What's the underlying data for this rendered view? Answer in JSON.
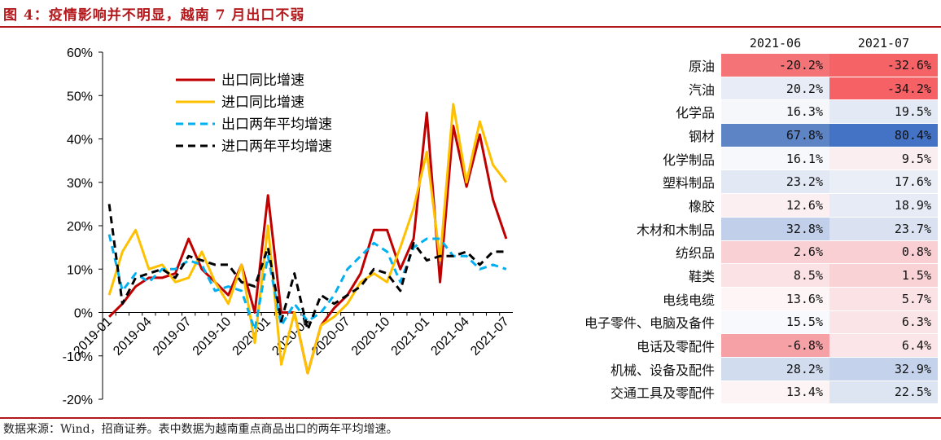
{
  "figure_title": "图 4：疫情影响并不明显，越南 7 月出口不弱",
  "source_note": "数据来源：Wind，招商证券。表中数据为越南重点商品出口的两年平均增速。",
  "colors": {
    "title_red": "#b3191c",
    "export_yoy": "#c00000",
    "import_yoy": "#ffc000",
    "export_2y": "#00b0f0",
    "import_2y": "#000000"
  },
  "chart_data": [
    {
      "type": "line",
      "ylim": [
        -0.2,
        0.6
      ],
      "yticks": [
        "60%",
        "50%",
        "40%",
        "30%",
        "20%",
        "10%",
        "0%",
        "-10%",
        "-20%"
      ],
      "x": [
        "2019-01",
        "2019-02",
        "2019-03",
        "2019-04",
        "2019-05",
        "2019-06",
        "2019-07",
        "2019-08",
        "2019-09",
        "2019-10",
        "2019-11",
        "2019-12",
        "2020-01",
        "2020-02",
        "2020-03",
        "2020-04",
        "2020-05",
        "2020-06",
        "2020-07",
        "2020-08",
        "2020-09",
        "2020-10",
        "2020-11",
        "2020-12",
        "2021-01",
        "2021-02",
        "2021-03",
        "2021-04",
        "2021-05",
        "2021-06",
        "2021-07"
      ],
      "xtick_labels": [
        "2019-01",
        "2019-04",
        "2019-07",
        "2019-10",
        "2020-01",
        "2020-04",
        "2020-07",
        "2020-10",
        "2021-01",
        "2021-04",
        "2021-07"
      ],
      "legend_position": "top-left",
      "series": [
        {
          "name": "出口同比增速",
          "color": "#c00000",
          "dash": "solid",
          "values": [
            -0.01,
            0.02,
            0.06,
            0.08,
            0.08,
            0.09,
            0.17,
            0.1,
            0.07,
            0.04,
            0.11,
            0.0,
            0.27,
            0.0,
            0.0,
            -0.14,
            -0.03,
            0.01,
            0.04,
            0.09,
            0.19,
            0.19,
            0.1,
            0.17,
            0.46,
            0.07,
            0.43,
            0.29,
            0.41,
            0.26,
            0.17
          ]
        },
        {
          "name": "进口同比增速",
          "color": "#ffc000",
          "dash": "solid",
          "values": [
            0.04,
            0.14,
            0.19,
            0.1,
            0.11,
            0.07,
            0.08,
            0.14,
            0.07,
            0.02,
            0.11,
            -0.07,
            0.2,
            -0.12,
            0.0,
            -0.14,
            -0.03,
            -0.01,
            0.02,
            0.07,
            0.09,
            0.07,
            0.15,
            0.24,
            0.37,
            0.12,
            0.48,
            0.3,
            0.44,
            0.34,
            0.3
          ]
        },
        {
          "name": "出口两年平均增速",
          "color": "#00b0f0",
          "dash": "dashed",
          "values": [
            0.18,
            0.05,
            0.09,
            0.07,
            0.1,
            0.1,
            0.12,
            0.11,
            0.05,
            0.06,
            0.05,
            -0.04,
            0.13,
            -0.03,
            0.02,
            -0.02,
            0.0,
            0.04,
            0.1,
            0.13,
            0.16,
            0.14,
            0.07,
            0.15,
            0.17,
            0.17,
            0.13,
            0.13,
            0.1,
            0.11,
            0.1
          ]
        },
        {
          "name": "进口两年平均增速",
          "color": "#000000",
          "dash": "dashed",
          "values": [
            0.25,
            0.02,
            0.08,
            0.09,
            0.1,
            0.08,
            0.13,
            0.12,
            0.11,
            0.11,
            0.07,
            0.06,
            0.15,
            -0.02,
            0.09,
            -0.04,
            0.04,
            0.02,
            0.04,
            0.06,
            0.1,
            0.09,
            0.05,
            0.16,
            0.12,
            0.13,
            0.13,
            0.14,
            0.11,
            0.14,
            0.14
          ]
        }
      ]
    },
    {
      "type": "table",
      "columns": [
        "2021-06",
        "2021-07"
      ],
      "rows": [
        {
          "label": "原油",
          "values": [
            "-20.2%",
            "-32.6%"
          ],
          "colors": [
            "#f47377",
            "#f56367"
          ]
        },
        {
          "label": "汽油",
          "values": [
            "20.2%",
            "-34.2%"
          ],
          "colors": [
            "#e7ecf6",
            "#f56165"
          ]
        },
        {
          "label": "化学品",
          "values": [
            "16.3%",
            "19.5%"
          ],
          "colors": [
            "#f5f7fb",
            "#e4eaf5"
          ]
        },
        {
          "label": "钢材",
          "values": [
            "67.8%",
            "80.4%"
          ],
          "colors": [
            "#5d84c4",
            "#4472c4"
          ]
        },
        {
          "label": "化学制品",
          "values": [
            "16.1%",
            "9.5%"
          ],
          "colors": [
            "#f6f8fc",
            "#fbeef0"
          ]
        },
        {
          "label": "塑料制品",
          "values": [
            "23.2%",
            "17.6%"
          ],
          "colors": [
            "#e2e8f4",
            "#eaeff7"
          ]
        },
        {
          "label": "橡胶",
          "values": [
            "12.6%",
            "18.9%"
          ],
          "colors": [
            "#fbeff1",
            "#e6ebf6"
          ]
        },
        {
          "label": "木材和木制品",
          "values": [
            "32.8%",
            "23.7%"
          ],
          "colors": [
            "#c1cfea",
            "#dae2f1"
          ]
        },
        {
          "label": "纺织品",
          "values": [
            "2.6%",
            "0.8%"
          ],
          "colors": [
            "#f9d1d5",
            "#f9cfd3"
          ]
        },
        {
          "label": "鞋类",
          "values": [
            "8.5%",
            "1.5%"
          ],
          "colors": [
            "#fbe2e5",
            "#f9d2d6"
          ]
        },
        {
          "label": "电线电缆",
          "values": [
            "13.6%",
            "5.7%"
          ],
          "colors": [
            "#fdf5f6",
            "#fae2e5"
          ]
        },
        {
          "label": "电子零件、电脑及备件",
          "values": [
            "15.5%",
            "6.3%"
          ],
          "colors": [
            "#f8f9fc",
            "#fbe4e7"
          ]
        },
        {
          "label": "电话及零配件",
          "values": [
            "-6.8%",
            "6.4%"
          ],
          "colors": [
            "#f6a1a6",
            "#fbe5e8"
          ]
        },
        {
          "label": "机械、设备及配件",
          "values": [
            "28.2%",
            "32.9%"
          ],
          "colors": [
            "#d2dcef",
            "#c5d2eb"
          ]
        },
        {
          "label": "交通工具及零配件",
          "values": [
            "13.4%",
            "22.5%"
          ],
          "colors": [
            "#fdf4f5",
            "#dde4f2"
          ]
        }
      ]
    }
  ]
}
